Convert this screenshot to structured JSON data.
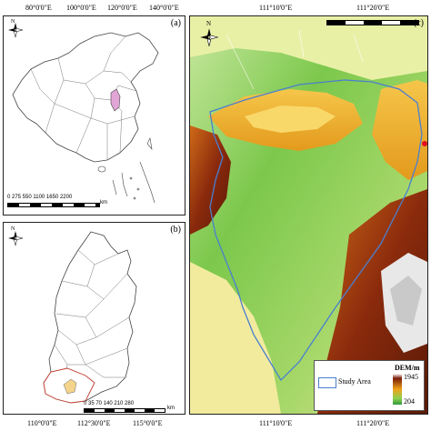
{
  "top_axis": {
    "left_labels": [
      "80°0'0\"E",
      "100°0'0\"E",
      "120°0'0\"E",
      "140°0'0\"E"
    ],
    "right_labels": [
      "111°10'0\"E",
      "111°20'0\"E"
    ]
  },
  "bottom_axis": {
    "left_labels": [
      "110°0'0\"E",
      "112°30'0\"E",
      "115°0'0\"E"
    ],
    "right_labels": [
      "111°10'0\"E",
      "111°20'0\"E"
    ]
  },
  "panel_a": {
    "label": "(a)",
    "north": "N",
    "scale_ticks": "0 275 550    1100    1650   2200",
    "scale_unit": "km"
  },
  "panel_b": {
    "label": "(b)",
    "north": "N",
    "scale_ticks": "0  35  70     140    210    280",
    "scale_unit": "km"
  },
  "panel_c": {
    "label": "(c)",
    "north": "N",
    "legend": {
      "study_area": "Study Area",
      "dem_title": "DEM/m",
      "dem_max": "1945",
      "dem_min": "204"
    }
  },
  "colors": {
    "highlight_pink": "#e2a6d6",
    "study_area_line": "#4a7fd0",
    "dem_high": "#7a1e0a",
    "dem_mid": "#f0a21a",
    "dem_low": "#2f9a3c"
  }
}
